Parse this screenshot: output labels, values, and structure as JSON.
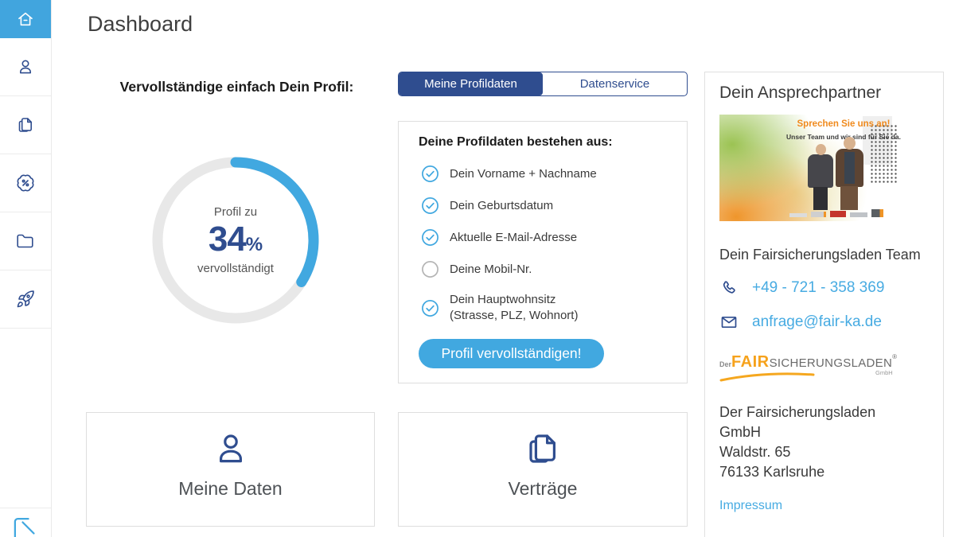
{
  "page": {
    "title": "Dashboard"
  },
  "sidebar": {
    "items": [
      {
        "id": "home",
        "icon": "home-icon",
        "active": true
      },
      {
        "id": "profile",
        "icon": "user-icon",
        "active": false
      },
      {
        "id": "contracts",
        "icon": "documents-icon",
        "active": false
      },
      {
        "id": "offers",
        "icon": "percent-badge-icon",
        "active": false
      },
      {
        "id": "files",
        "icon": "folder-icon",
        "active": false
      },
      {
        "id": "boost",
        "icon": "rocket-icon",
        "active": false
      }
    ],
    "footer_icon": "logout-icon"
  },
  "profile": {
    "heading": "Vervollständige einfach Dein Profil:",
    "progress": {
      "percent": 34,
      "percent_suffix": "%",
      "label_top": "Profil zu",
      "label_bottom": "vervollständigt",
      "accent_color": "#41a8e0",
      "track_color": "#e8e8e8"
    }
  },
  "tabs": [
    {
      "label": "Meine Profildaten",
      "active": true
    },
    {
      "label": "Datenservice",
      "active": false
    }
  ],
  "checklist": {
    "title": "Deine Profildaten bestehen aus:",
    "items": [
      {
        "label": "Dein Vorname + Nachname",
        "checked": true
      },
      {
        "label": "Dein Geburtsdatum",
        "checked": true
      },
      {
        "label": "Aktuelle E-Mail-Adresse",
        "checked": true
      },
      {
        "label": "Deine Mobil-Nr.",
        "checked": false
      },
      {
        "label": "Dein Hauptwohnsitz",
        "label_line2": "(Strasse, PLZ, Wohnort)",
        "checked": true
      }
    ],
    "button_label": "Profil vervollständigen!"
  },
  "shortcuts": [
    {
      "label": "Meine Daten",
      "icon": "user-icon"
    },
    {
      "label": "Verträge",
      "icon": "documents-icon"
    }
  ],
  "contact": {
    "heading": "Dein Ansprechpartner",
    "banner": {
      "headline": "Sprechen Sie uns an!",
      "subline": "Unser Team und wir sind für Sie da."
    },
    "team_line": "Dein Fairsicherungsladen Team",
    "phone": "+49 - 721 - 358 369",
    "email": "anfrage@fair-ka.de",
    "brand_logo": {
      "prefix": "Der",
      "fair": "FAIR",
      "rest": "SICHERUNGSLADEN",
      "reg": "®",
      "sub": "GmbH"
    },
    "address_lines": [
      "Der Fairsicherungsladen",
      "GmbH",
      "Waldstr. 65",
      "76133 Karlsruhe"
    ],
    "impressum": "Impressum"
  },
  "colors": {
    "accent_blue": "#41a8e0",
    "sidebar_active_blue": "#41a5de",
    "navy": "#2f4d8f",
    "link_blue": "#47abe2",
    "brand_orange": "#f6a21c"
  }
}
